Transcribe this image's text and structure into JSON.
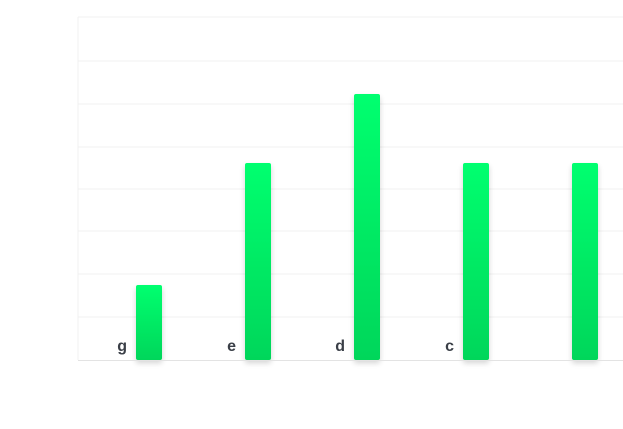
{
  "chart_data": {
    "type": "bar",
    "categories": [
      "g",
      "e",
      "d",
      "c",
      ""
    ],
    "values": [
      75,
      197,
      266,
      197,
      197
    ],
    "ylim": [
      0,
      343
    ],
    "grid": true,
    "legend": "none",
    "colors": {
      "bar_top": "#00ff6f",
      "bar_bottom": "#00d65a",
      "grid": "#f0f0f0",
      "axis": "#e3e3e3",
      "label": "#3a3f47"
    }
  }
}
